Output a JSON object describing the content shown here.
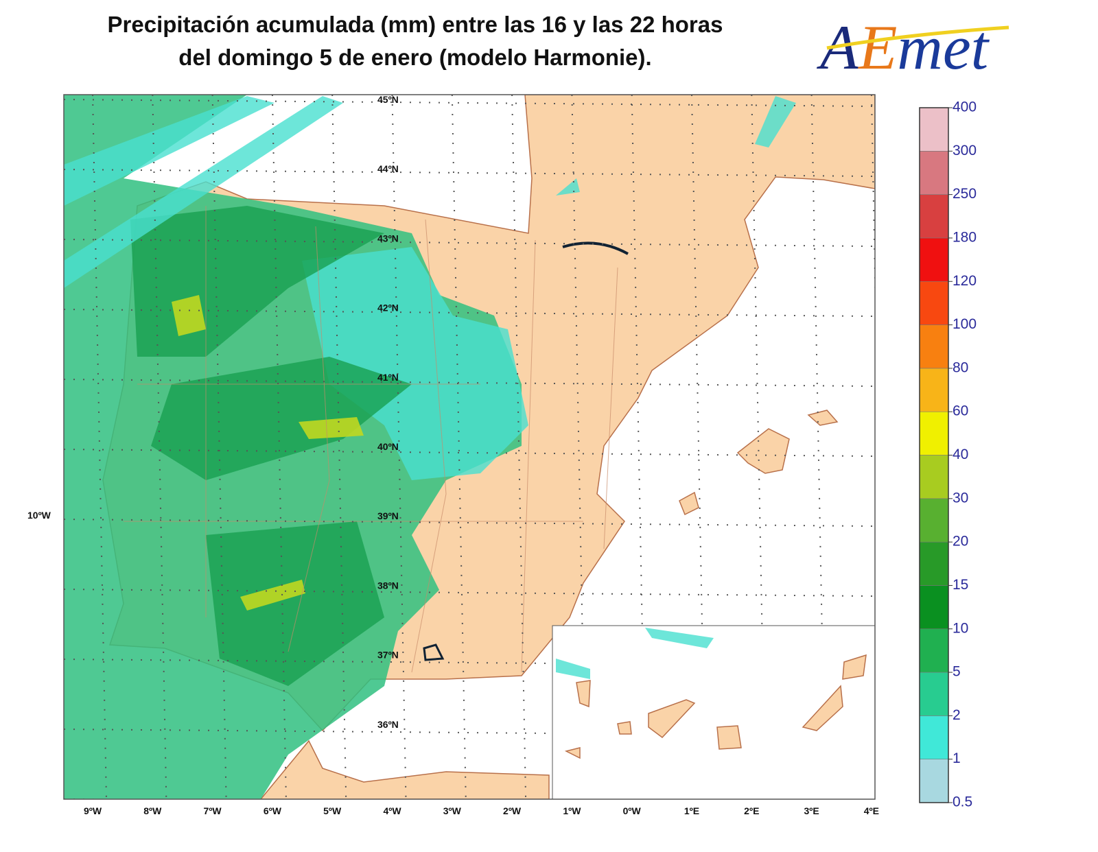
{
  "header": {
    "title": [
      "Precipitación acumulada (mm) entre las 16 y las 22 horas",
      "del domingo 5 de enero (modelo Harmonie)."
    ],
    "logo": [
      "A",
      "E",
      "met"
    ]
  },
  "map": {
    "lat_labels": [
      "45ºN",
      "44ºN",
      "43ºN",
      "42ºN",
      "41ºN",
      "40ºN",
      "39ºN",
      "38ºN",
      "37ºN",
      "36ºN"
    ],
    "lon_labels": [
      "9ºW",
      "8ºW",
      "7ºW",
      "6ºW",
      "5ºW",
      "4ºW",
      "3ºW",
      "2ºW",
      "1ºW",
      "0ºW",
      "1ºE",
      "2ºE",
      "3ºE",
      "4ºE"
    ],
    "west_label": "10ºW"
  },
  "colorbar": {
    "ticks": [
      0.5,
      1,
      2,
      5,
      10,
      15,
      20,
      30,
      40,
      60,
      80,
      100,
      120,
      180,
      250,
      300,
      400
    ],
    "colors": [
      "#a8d8e0",
      "#40e8d8",
      "#28cc90",
      "#20b050",
      "#0a9020",
      "#289a28",
      "#58b030",
      "#a8cc20",
      "#f0f000",
      "#f8b418",
      "#f88010",
      "#f84810",
      "#f01010",
      "#d84040",
      "#d87880",
      "#ecc0c8"
    ]
  }
}
